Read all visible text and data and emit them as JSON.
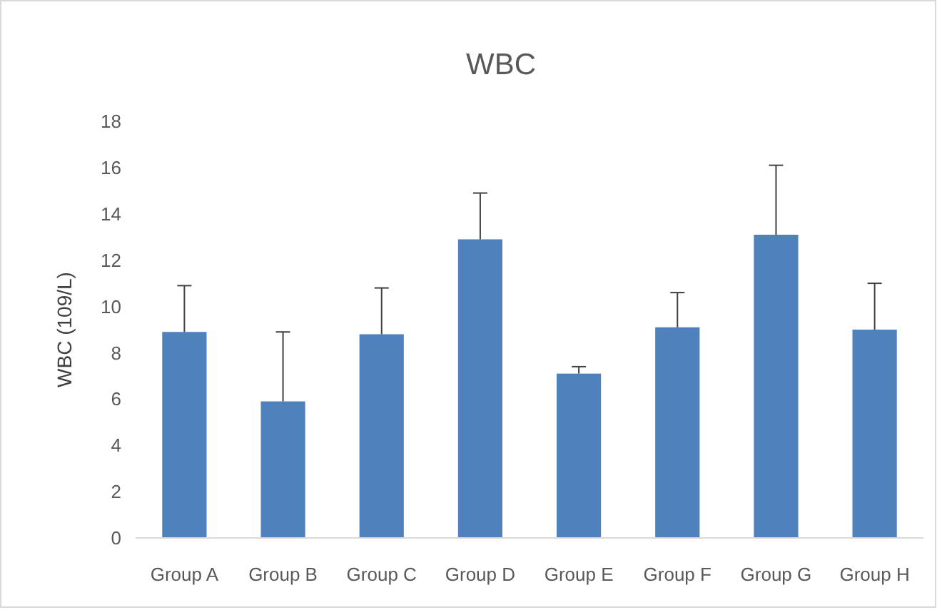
{
  "chart_data": {
    "type": "bar",
    "title": "WBC",
    "ylabel": "WBC (109/L)",
    "categories": [
      "Group A",
      "Group B",
      "Group C",
      "Group D",
      "Group E",
      "Group F",
      "Group G",
      "Group H"
    ],
    "values": [
      8.9,
      5.9,
      8.8,
      12.9,
      7.1,
      9.1,
      13.1,
      9.0
    ],
    "errors": [
      [
        8.9,
        10.9
      ],
      [
        5.9,
        8.9
      ],
      [
        8.8,
        10.8
      ],
      [
        12.9,
        14.9
      ],
      [
        7.1,
        7.4
      ],
      [
        9.1,
        10.6
      ],
      [
        13.1,
        16.1
      ],
      [
        9.0,
        11.0
      ]
    ],
    "color": "#4f81bd",
    "ylim": [
      0,
      18
    ],
    "yticks": [
      0,
      2,
      4,
      6,
      8,
      10,
      12,
      14,
      16,
      18
    ],
    "grid": false
  }
}
